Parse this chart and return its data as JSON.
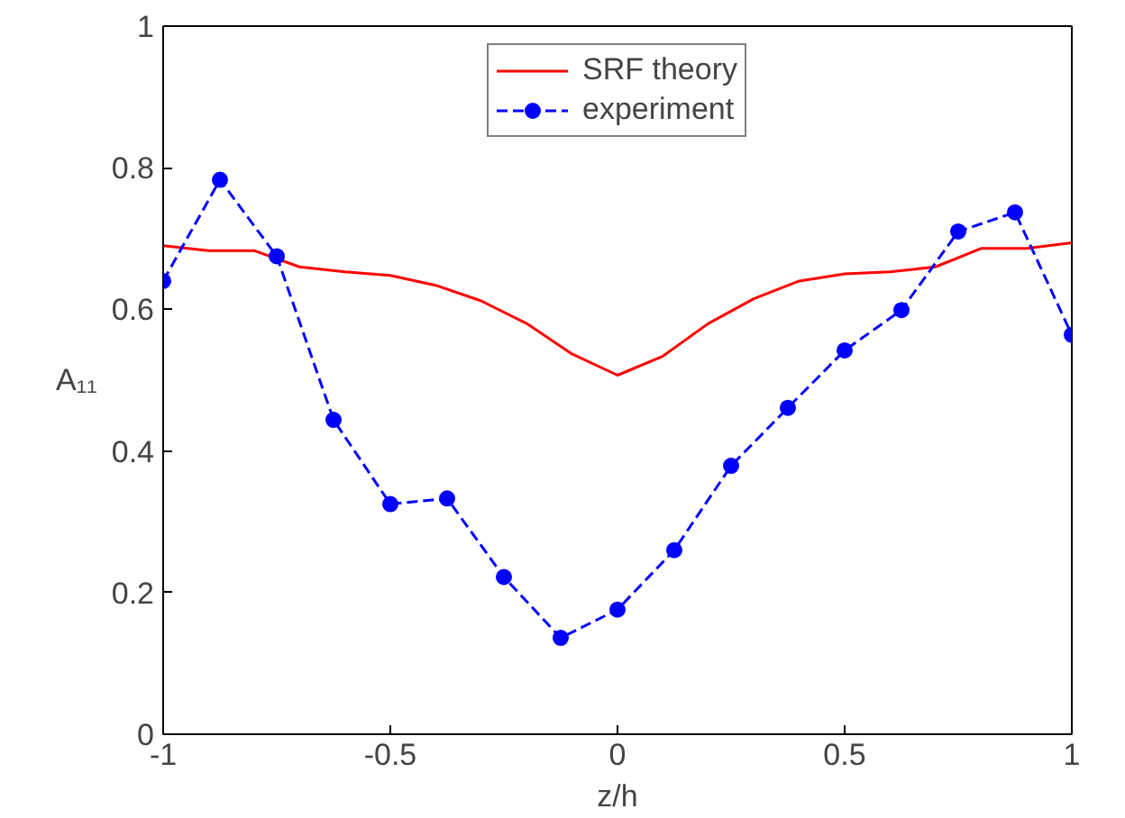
{
  "chart_data": {
    "type": "line",
    "xlabel": "z/h",
    "ylabel": "A₁₁",
    "xlim": [
      -1,
      1
    ],
    "ylim": [
      0,
      1
    ],
    "xticks": [
      -1,
      -0.5,
      0,
      0.5,
      1
    ],
    "yticks": [
      0,
      0.2,
      0.4,
      0.6,
      0.8,
      1
    ],
    "grid": false,
    "legend": "top",
    "series": [
      {
        "name": "SRF theory",
        "color": "#ff0000",
        "marker": "none",
        "line_style": "solid",
        "x": [
          -1,
          -0.9,
          -0.8,
          -0.7,
          -0.6,
          -0.5,
          -0.4,
          -0.3,
          -0.2,
          -0.1,
          0,
          0.1,
          0.2,
          0.3,
          0.4,
          0.5,
          0.6,
          0.7,
          0.8,
          0.9,
          1
        ],
        "values": [
          0.69,
          0.683,
          0.683,
          0.66,
          0.653,
          0.648,
          0.634,
          0.612,
          0.58,
          0.537,
          0.507,
          0.534,
          0.58,
          0.615,
          0.64,
          0.65,
          0.653,
          0.66,
          0.686,
          0.686,
          0.694
        ]
      },
      {
        "name": "experiment",
        "color": "#0000ff",
        "marker": "circle",
        "line_style": "dashed",
        "x": [
          -1,
          -0.875,
          -0.75,
          -0.625,
          -0.5,
          -0.375,
          -0.25,
          -0.125,
          0,
          0.125,
          0.25,
          0.375,
          0.5,
          0.625,
          0.75,
          0.875,
          1
        ],
        "values": [
          0.64,
          0.783,
          0.675,
          0.444,
          0.325,
          0.333,
          0.222,
          0.136,
          0.176,
          0.26,
          0.379,
          0.461,
          0.542,
          0.599,
          0.71,
          0.737,
          0.564
        ]
      }
    ]
  }
}
